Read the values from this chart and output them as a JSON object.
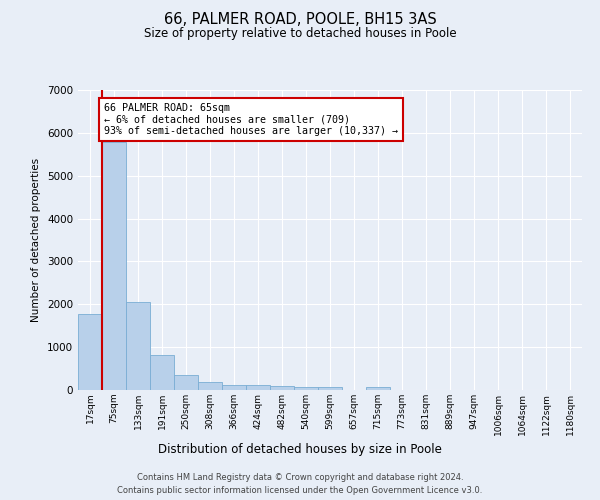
{
  "title": "66, PALMER ROAD, POOLE, BH15 3AS",
  "subtitle": "Size of property relative to detached houses in Poole",
  "xlabel": "Distribution of detached houses by size in Poole",
  "ylabel": "Number of detached properties",
  "bar_labels": [
    "17sqm",
    "75sqm",
    "133sqm",
    "191sqm",
    "250sqm",
    "308sqm",
    "366sqm",
    "424sqm",
    "482sqm",
    "540sqm",
    "599sqm",
    "657sqm",
    "715sqm",
    "773sqm",
    "831sqm",
    "889sqm",
    "947sqm",
    "1006sqm",
    "1064sqm",
    "1122sqm",
    "1180sqm"
  ],
  "bar_values": [
    1780,
    5780,
    2060,
    820,
    340,
    195,
    115,
    110,
    100,
    75,
    75,
    0,
    75,
    0,
    0,
    0,
    0,
    0,
    0,
    0,
    0
  ],
  "bar_color": "#b8d0ea",
  "bar_edge_color": "#7aadd4",
  "property_line_color": "#cc0000",
  "annotation_line1": "66 PALMER ROAD: 65sqm",
  "annotation_line2": "← 6% of detached houses are smaller (709)",
  "annotation_line3": "93% of semi-detached houses are larger (10,337) →",
  "annotation_box_color": "#ffffff",
  "annotation_box_edge": "#cc0000",
  "ylim": [
    0,
    7000
  ],
  "yticks": [
    0,
    1000,
    2000,
    3000,
    4000,
    5000,
    6000,
    7000
  ],
  "footer1": "Contains HM Land Registry data © Crown copyright and database right 2024.",
  "footer2": "Contains public sector information licensed under the Open Government Licence v3.0.",
  "bg_color": "#e8eef7",
  "plot_bg_color": "#e8eef7",
  "grid_color": "#ffffff"
}
